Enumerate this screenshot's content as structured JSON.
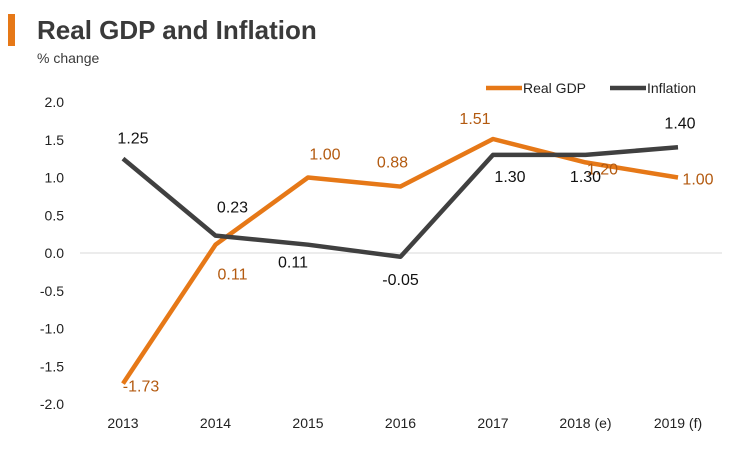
{
  "colors": {
    "accent": "#e67817",
    "gdp": "#e67817",
    "inflation": "#404040",
    "gdp_label": "#b35a10",
    "inflation_label": "#111111",
    "grid": "#d9d9d9"
  },
  "chart_data": {
    "type": "line",
    "title": "Real GDP and Inflation",
    "subtitle": "% change",
    "xlabel": "",
    "ylabel": "% change",
    "categories": [
      "2013",
      "2014",
      "2015",
      "2016",
      "2017",
      "2018 (e)",
      "2019 (f)"
    ],
    "ylim": [
      -2.0,
      2.0
    ],
    "yticks": [
      "2.0",
      "1.5",
      "1.0",
      "0.5",
      "0.0",
      "-0.5",
      "-1.0",
      "-1.5",
      "-2.0"
    ],
    "legend_position": "top-right",
    "series": [
      {
        "name": "Real GDP",
        "values": [
          -1.73,
          0.11,
          1.0,
          0.88,
          1.51,
          1.2,
          1.0
        ],
        "labels": [
          "-1.73",
          "0.11",
          "1.00",
          "0.88",
          "1.51",
          "1.20",
          "1.00"
        ]
      },
      {
        "name": "Inflation",
        "values": [
          1.25,
          0.23,
          0.11,
          -0.05,
          1.3,
          1.3,
          1.4
        ],
        "labels": [
          "1.25",
          "0.23",
          "0.11",
          "-0.05",
          "1.30",
          "1.30",
          "1.40"
        ]
      }
    ]
  }
}
